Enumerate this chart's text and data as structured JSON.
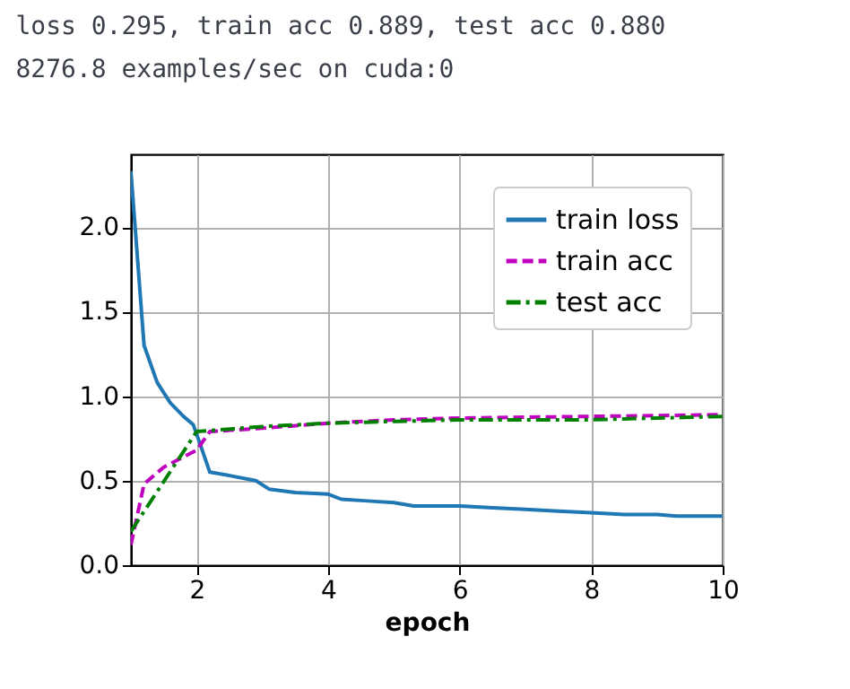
{
  "chart_data": {
    "type": "line",
    "annotations": [
      "loss 0.295, train acc 0.889, test acc 0.880",
      "8276.8 examples/sec on cuda:0"
    ],
    "xlabel": "epoch",
    "xlim": [
      1,
      10
    ],
    "xticks": [
      2,
      4,
      6,
      8,
      10
    ],
    "ylim": [
      0,
      2.43
    ],
    "yticks": [
      {
        "value": 0,
        "label": "0.0"
      },
      0.5,
      {
        "value": 1,
        "label": "1.0"
      },
      1.5,
      {
        "value": 2,
        "label": "2.0"
      }
    ],
    "grid": true,
    "legend": "top right",
    "marker": "none",
    "series": [
      {
        "name": "train loss",
        "color": "#1f77b4",
        "line_style": "solid",
        "x": [
          1.0,
          1.2,
          1.4,
          1.6,
          1.8,
          1.95,
          2.05,
          2.2,
          2.5,
          2.9,
          3.1,
          3.5,
          4.0,
          4.2,
          4.6,
          5.0,
          5.3,
          6.0,
          6.5,
          7.0,
          7.5,
          8.0,
          8.5,
          9.0,
          9.3,
          10.0
        ],
        "values": [
          2.33,
          1.3,
          1.08,
          0.96,
          0.88,
          0.83,
          0.72,
          0.55,
          0.53,
          0.5,
          0.45,
          0.43,
          0.42,
          0.39,
          0.38,
          0.37,
          0.35,
          0.35,
          0.34,
          0.33,
          0.32,
          0.31,
          0.3,
          0.3,
          0.29,
          0.29
        ]
      },
      {
        "name": "train acc",
        "color": "#bf00bf",
        "line_style": "dashed",
        "x": [
          1.0,
          1.2,
          1.5,
          1.8,
          2.0,
          2.2,
          3.0,
          4.0,
          5.0,
          6.0,
          8.0,
          10.0
        ],
        "values": [
          0.12,
          0.48,
          0.58,
          0.64,
          0.68,
          0.79,
          0.81,
          0.84,
          0.86,
          0.87,
          0.88,
          0.89
        ]
      },
      {
        "name": "test acc",
        "color": "#008000",
        "line_style": "dashdot",
        "x": [
          1,
          2,
          3,
          4,
          5,
          6,
          7,
          8,
          9,
          10
        ],
        "values": [
          0.2,
          0.79,
          0.82,
          0.84,
          0.85,
          0.86,
          0.86,
          0.86,
          0.87,
          0.88
        ]
      }
    ]
  }
}
